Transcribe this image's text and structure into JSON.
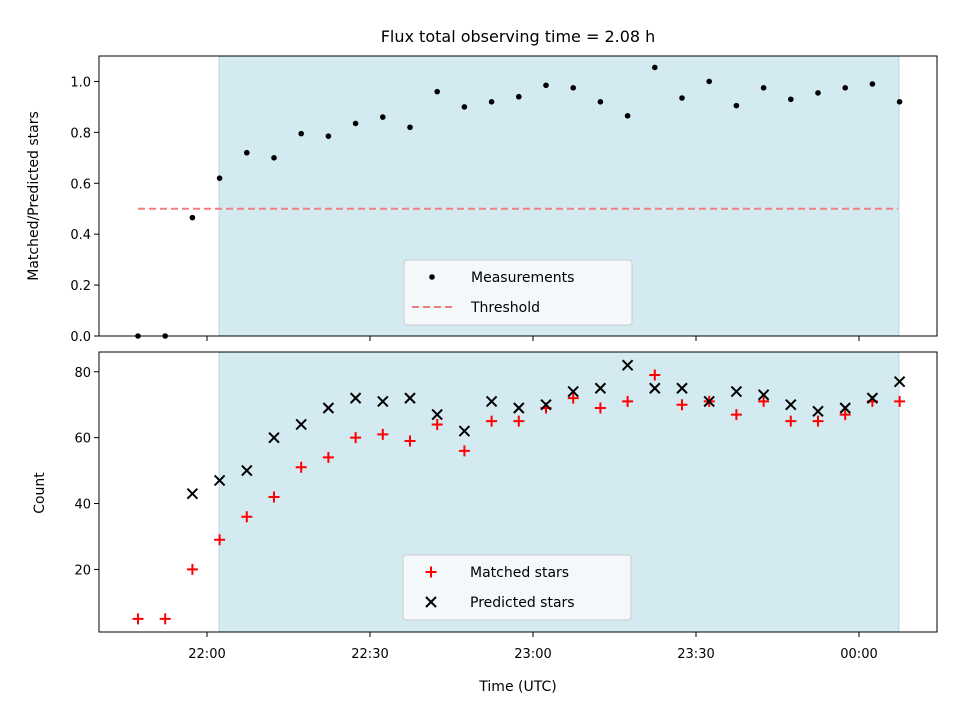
{
  "chart_data": {
    "title": "Flux total observing time = 2.08 h",
    "xlabel": "Time (UTC)",
    "x_tick_labels": [
      "22:00",
      "22:30",
      "23:00",
      "23:30",
      "00:00"
    ],
    "shaded_region_color": "#d3eaf0",
    "panels": [
      {
        "type": "scatter",
        "ylabel": "Matched/Predicted stars",
        "ylim": [
          0,
          1.1
        ],
        "yticks": [
          "0.0",
          "0.2",
          "0.4",
          "0.6",
          "0.8",
          "1.0"
        ],
        "legend_position": "lower-center",
        "series": [
          {
            "name": "Measurements",
            "marker": "dot",
            "color": "#000000",
            "values": [
              0.0,
              0.0,
              0.465,
              0.62,
              0.72,
              0.7,
              0.795,
              0.785,
              0.835,
              0.86,
              0.82,
              0.96,
              0.9,
              0.92,
              0.94,
              0.985,
              0.975,
              0.92,
              0.865,
              1.055,
              0.935,
              1.0,
              0.905,
              0.975,
              0.93,
              0.955,
              0.975,
              0.99,
              0.92
            ]
          },
          {
            "name": "Threshold",
            "marker": "dashed-line",
            "color": "#f08080",
            "values": [
              0.5
            ]
          }
        ]
      },
      {
        "type": "scatter",
        "ylabel": "Count",
        "ylim": [
          1,
          86
        ],
        "yticks": [
          "20",
          "40",
          "60",
          "80"
        ],
        "legend_position": "lower-center",
        "series": [
          {
            "name": "Matched stars",
            "marker": "plus",
            "color": "#ff0000",
            "values": [
              5,
              5,
              20,
              29,
              36,
              42,
              51,
              54,
              60,
              61,
              59,
              64,
              56,
              65,
              65,
              69,
              72,
              69,
              71,
              79,
              70,
              71,
              67,
              71,
              65,
              65,
              67,
              71,
              71
            ]
          },
          {
            "name": "Predicted stars",
            "marker": "x",
            "color": "#000000",
            "values": [
              null,
              null,
              43,
              47,
              50,
              60,
              64,
              69,
              72,
              71,
              72,
              67,
              62,
              71,
              69,
              70,
              74,
              75,
              82,
              75,
              75,
              71,
              74,
              73,
              70,
              68,
              69,
              72,
              77
            ]
          }
        ]
      }
    ]
  }
}
